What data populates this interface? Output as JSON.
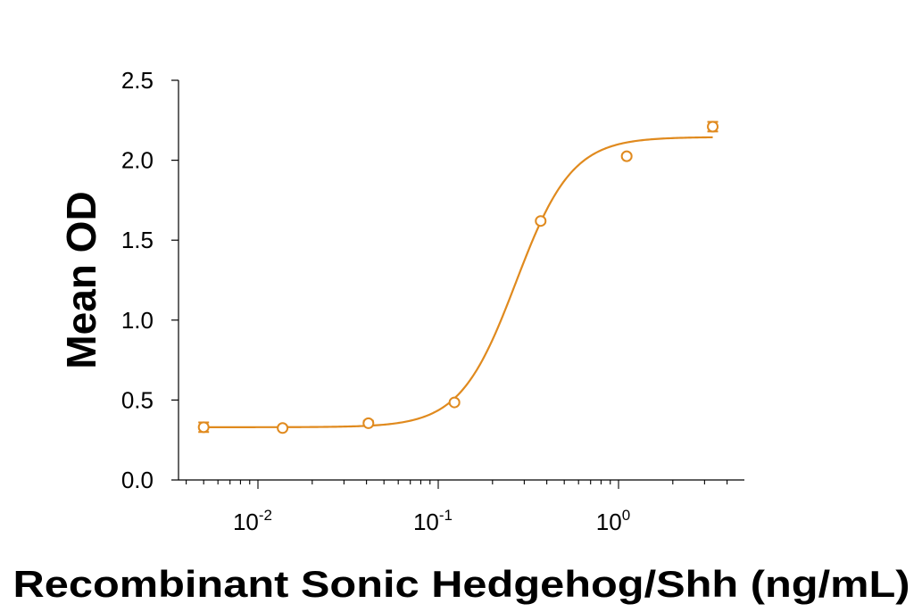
{
  "chart_data": {
    "type": "scatter",
    "xlabel": "Recombinant Sonic Hedgehog/Shh (ng/mL)",
    "ylabel": "Mean OD",
    "x_scale": "log",
    "xlim": [
      0.004,
      4.5
    ],
    "ylim": [
      0,
      2.5
    ],
    "y_ticks": [
      "0.0",
      "0.5",
      "1.0",
      "1.5",
      "2.0",
      "2.5"
    ],
    "x_ticks": [
      {
        "base": "10",
        "exp": "-2",
        "value": 0.01
      },
      {
        "base": "10",
        "exp": "-1",
        "value": 0.1
      },
      {
        "base": "10",
        "exp": "0",
        "value": 1
      }
    ],
    "color": "#E08A1E",
    "grid": false,
    "points": [
      {
        "x": 0.005,
        "y": 0.33,
        "err": 0.03
      },
      {
        "x": 0.0137,
        "y": 0.325,
        "err": 0.01
      },
      {
        "x": 0.041,
        "y": 0.355,
        "err": 0.015
      },
      {
        "x": 0.123,
        "y": 0.485,
        "err": 0.01
      },
      {
        "x": 0.37,
        "y": 1.62,
        "err": 0.01
      },
      {
        "x": 1.11,
        "y": 2.025,
        "err": 0.01
      },
      {
        "x": 3.33,
        "y": 2.21,
        "err": 0.03
      }
    ],
    "fit": {
      "model": "4PL",
      "bottom": 0.33,
      "top": 2.145,
      "ec50": 0.27,
      "hill": 2.8
    }
  }
}
